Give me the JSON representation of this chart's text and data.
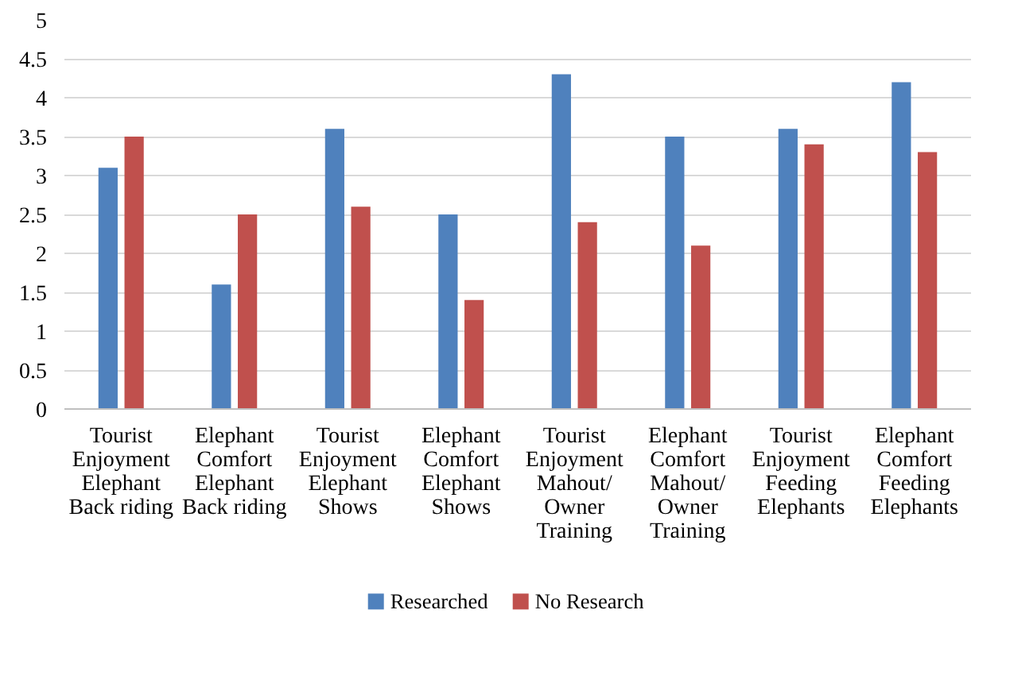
{
  "chart_data": {
    "type": "bar",
    "categories": [
      "Tourist\nEnjoyment\nElephant\nBack riding",
      "Elephant\nComfort\nElephant\nBack riding",
      "Tourist\nEnjoyment\nElephant\nShows",
      "Elephant\nComfort\nElephant\nShows",
      "Tourist\nEnjoyment\nMahout/\nOwner\nTraining",
      "Elephant\nComfort\nMahout/\nOwner\nTraining",
      "Tourist\nEnjoyment\nFeeding\nElephants",
      "Elephant\nComfort\nFeeding\nElephants"
    ],
    "series": [
      {
        "name": "Researched",
        "color": "#4f81bd",
        "values": [
          3.1,
          1.6,
          3.6,
          2.5,
          4.3,
          3.5,
          3.6,
          4.2
        ]
      },
      {
        "name": "No Research",
        "color": "#c0504d",
        "values": [
          3.5,
          2.5,
          2.6,
          1.4,
          2.4,
          2.1,
          3.4,
          3.3
        ]
      }
    ],
    "ylim": [
      0,
      5
    ],
    "yticks": [
      0,
      0.5,
      1,
      1.5,
      2,
      2.5,
      3,
      3.5,
      4,
      4.5,
      5
    ],
    "grid": "y",
    "legend": "bottom"
  }
}
